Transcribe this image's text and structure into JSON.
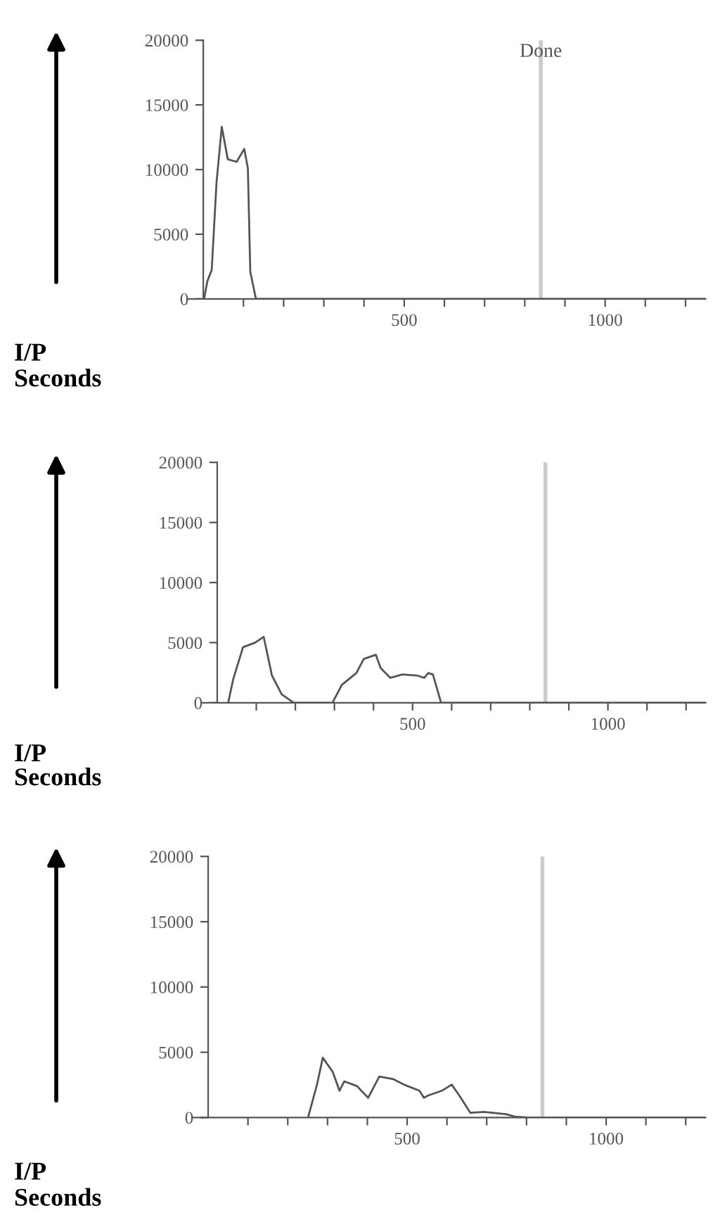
{
  "chart_data": [
    {
      "type": "line",
      "xlabel": "Seconds",
      "ylabel": "I/P",
      "xlim": [
        -40,
        1250
      ],
      "ylim": [
        0,
        20000
      ],
      "xticks": [
        {
          "value": 100,
          "label": null
        },
        {
          "value": 200,
          "label": null
        },
        {
          "value": 300,
          "label": null
        },
        {
          "value": 400,
          "label": null
        },
        500,
        {
          "value": 600,
          "label": null
        },
        {
          "value": 700,
          "label": null
        },
        {
          "value": 800,
          "label": null
        },
        {
          "value": 900,
          "label": null
        },
        1000,
        {
          "value": 1100,
          "label": null
        },
        {
          "value": 1200,
          "label": null
        }
      ],
      "yticks": [
        0,
        5000,
        10000,
        15000,
        20000
      ],
      "x": [
        2,
        10,
        21,
        33,
        46,
        61,
        83,
        102,
        111,
        117,
        131,
        1250
      ],
      "series": [
        {
          "color": "#555555",
          "values": [
            0,
            1350,
            2250,
            9000,
            13300,
            10800,
            10600,
            11600,
            10100,
            2100,
            0,
            0
          ]
        }
      ],
      "ref_lines": [
        {
          "axis": "x",
          "value": 840,
          "label": "Done",
          "color": "#cccccc"
        }
      ],
      "grid": false
    },
    {
      "type": "line",
      "xlabel": "Seconds",
      "ylabel": "I/P",
      "xlim": [
        -40,
        1250
      ],
      "ylim": [
        0,
        20000
      ],
      "xticks": [
        {
          "value": 100,
          "label": null
        },
        {
          "value": 200,
          "label": null
        },
        {
          "value": 300,
          "label": null
        },
        {
          "value": 400,
          "label": null
        },
        500,
        {
          "value": 600,
          "label": null
        },
        {
          "value": 700,
          "label": null
        },
        {
          "value": 800,
          "label": null
        },
        {
          "value": 900,
          "label": null
        },
        1000,
        {
          "value": 1100,
          "label": null
        },
        {
          "value": 1200,
          "label": null
        }
      ],
      "yticks": [
        0,
        5000,
        10000,
        15000,
        20000
      ],
      "x": [
        28,
        41,
        66,
        97,
        119,
        140,
        165,
        196,
        295,
        319,
        356,
        375,
        406,
        418,
        443,
        474,
        511,
        530,
        540,
        552,
        573,
        1250
      ],
      "series": [
        {
          "color": "#555555",
          "values": [
            0,
            1960,
            4620,
            5000,
            5480,
            2270,
            700,
            0,
            0,
            1490,
            2470,
            3640,
            3990,
            2900,
            2070,
            2350,
            2270,
            2070,
            2470,
            2350,
            0,
            0
          ]
        }
      ],
      "ref_lines": [
        {
          "axis": "x",
          "value": 840,
          "color": "#cccccc"
        }
      ],
      "grid": false
    },
    {
      "type": "line",
      "xlabel": "Seconds",
      "ylabel": "I/P",
      "xlim": [
        -40,
        1250
      ],
      "ylim": [
        0,
        20000
      ],
      "xticks": [
        {
          "value": 100,
          "label": null
        },
        {
          "value": 200,
          "label": null
        },
        {
          "value": 300,
          "label": null
        },
        {
          "value": 400,
          "label": null
        },
        500,
        {
          "value": 600,
          "label": null
        },
        {
          "value": 700,
          "label": null
        },
        {
          "value": 800,
          "label": null
        },
        {
          "value": 900,
          "label": null
        },
        1000,
        {
          "value": 1100,
          "label": null
        },
        {
          "value": 1200,
          "label": null
        }
      ],
      "yticks": [
        0,
        5000,
        10000,
        15000,
        20000
      ],
      "x": [
        251,
        274,
        288,
        313,
        330,
        342,
        374,
        402,
        430,
        464,
        492,
        531,
        542,
        553,
        587,
        612,
        631,
        659,
        693,
        749,
        771,
        805,
        1250
      ],
      "series": [
        {
          "color": "#555555",
          "values": [
            0,
            2590,
            4580,
            3500,
            2050,
            2770,
            2410,
            1510,
            3140,
            2950,
            2520,
            2050,
            1510,
            1690,
            2050,
            2520,
            1690,
            360,
            430,
            250,
            70,
            0,
            0
          ]
        }
      ],
      "ref_lines": [
        {
          "axis": "x",
          "value": 840,
          "color": "#cccccc"
        }
      ],
      "grid": false
    }
  ]
}
